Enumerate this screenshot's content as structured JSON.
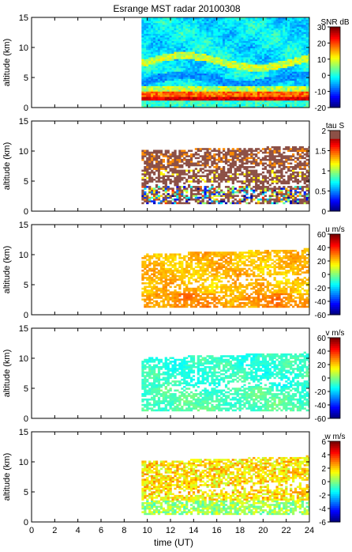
{
  "figure": {
    "title": "Esrange MST radar 20100308"
  },
  "chart_data": {
    "type": "heatmap",
    "x": {
      "label": "time (UT)",
      "range": [
        0,
        24
      ],
      "ticks": [
        "0",
        "2",
        "4",
        "6",
        "8",
        "10",
        "12",
        "14",
        "16",
        "18",
        "20",
        "22",
        "24"
      ],
      "data_start": 9.5
    },
    "y": {
      "label": "altitude (km)",
      "range": [
        0,
        15
      ],
      "ticks": [
        "0",
        "5",
        "10",
        "15"
      ]
    },
    "panels": [
      {
        "id": "snr",
        "colorbar_label": "SNR dB",
        "crange": [
          -20,
          30
        ],
        "cticks": [
          "-20",
          "-10",
          "0",
          "10",
          "20",
          "30"
        ],
        "palette": "jet",
        "pattern": "snr",
        "description_values": {
          "bottom_layer_km": [
            1.0,
            3.0
          ],
          "peak_db": 30
        }
      },
      {
        "id": "tau",
        "colorbar_label": "tau S",
        "crange": [
          0,
          2
        ],
        "cticks": [
          "0",
          "0.5",
          "1",
          "1.5",
          "2"
        ],
        "palette": "jet_brown",
        "pattern": "tau",
        "description_values": {
          "layers_km": [
            [
              1.5,
              4.0
            ],
            [
              5.0,
              6.5
            ],
            [
              7.0,
              10.0
            ]
          ]
        }
      },
      {
        "id": "u",
        "colorbar_label": "u m/s",
        "crange": [
          -60,
          60
        ],
        "cticks": [
          "-60",
          "-40",
          "-20",
          "0",
          "20",
          "40",
          "60"
        ],
        "palette": "jet",
        "pattern": "u",
        "description_values": {
          "typical": 20
        }
      },
      {
        "id": "v",
        "colorbar_label": "v m/s",
        "crange": [
          -60,
          60
        ],
        "cticks": [
          "-60",
          "-40",
          "-20",
          "0",
          "20",
          "40",
          "60"
        ],
        "palette": "jet",
        "pattern": "v",
        "description_values": {
          "typical": -15
        }
      },
      {
        "id": "w",
        "colorbar_label": "w m/s",
        "crange": [
          -6,
          6
        ],
        "cticks": [
          "-6",
          "-4",
          "-2",
          "0",
          "2",
          "4",
          "6"
        ],
        "palette": "jet",
        "pattern": "w",
        "description_values": {
          "typical": 1
        }
      }
    ]
  }
}
